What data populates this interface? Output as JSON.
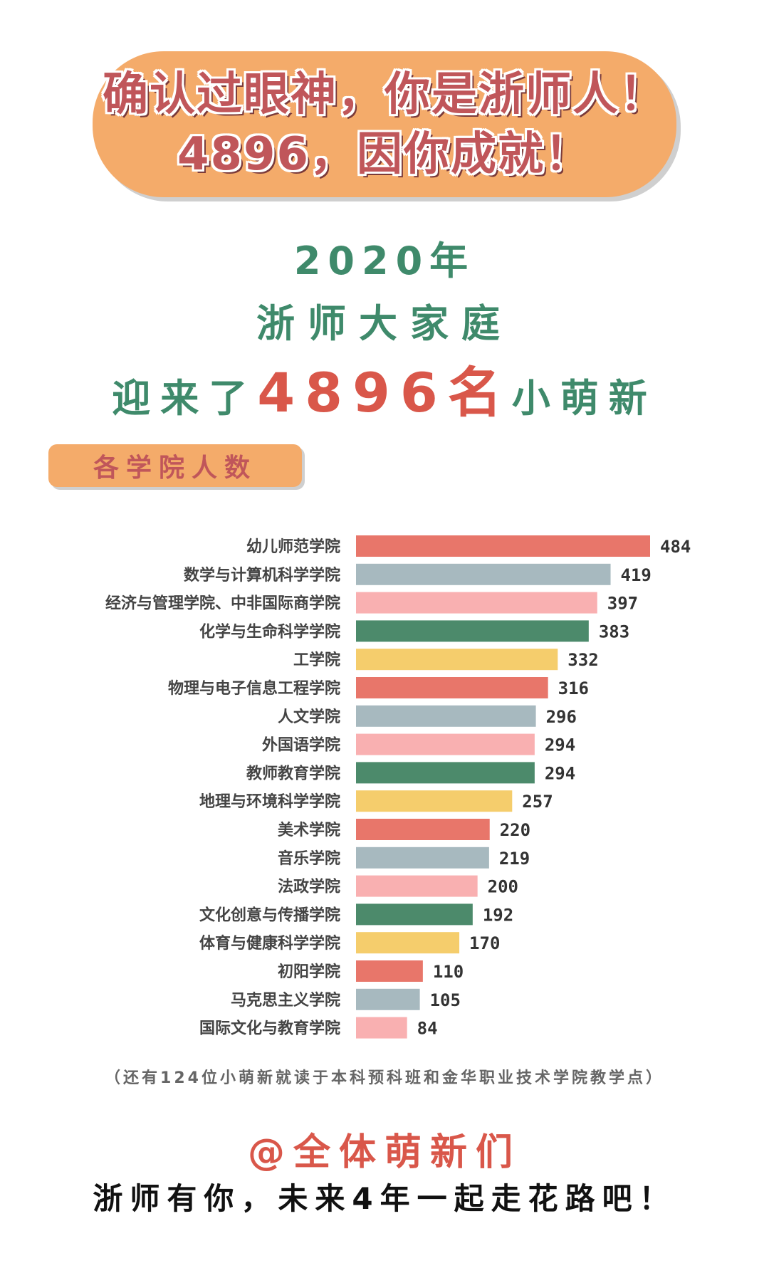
{
  "banner": {
    "line1": "确认过眼神，你是浙师人！",
    "line2": "4896，因你成就！"
  },
  "headline": {
    "year": "2020年",
    "family": "浙师大家庭",
    "welcome_prefix": "迎来了",
    "count": "4896",
    "count_unit": "名",
    "welcome_suffix": "小萌新"
  },
  "section_tag": "各学院人数",
  "colors": {
    "coral": "#e8766a",
    "gray": "#a7b9bf",
    "pink": "#f9b0b1",
    "green": "#4c8a6b",
    "yellow": "#f5cd6c",
    "orange": "#f4ab6a"
  },
  "chart_data": {
    "type": "bar",
    "orientation": "horizontal",
    "title": "",
    "xlabel": "",
    "ylabel": "",
    "xlim": [
      0,
      484
    ],
    "grid": false,
    "data_labels": true,
    "categories": [
      "幼儿师范学院",
      "数学与计算机科学学院",
      "经济与管理学院、中非国际商学院",
      "化学与生命科学学院",
      "工学院",
      "物理与电子信息工程学院",
      "人文学院",
      "外国语学院",
      "教师教育学院",
      "地理与环境科学学院",
      "美术学院",
      "音乐学院",
      "法政学院",
      "文化创意与传播学院",
      "体育与健康科学学院",
      "初阳学院",
      "马克思主义学院",
      "国际文化与教育学院"
    ],
    "values": [
      484,
      419,
      397,
      383,
      332,
      316,
      296,
      294,
      294,
      257,
      220,
      219,
      200,
      192,
      170,
      110,
      105,
      84
    ],
    "bar_colors": [
      "#e8766a",
      "#a7b9bf",
      "#f9b0b1",
      "#4c8a6b",
      "#f5cd6c",
      "#e8766a",
      "#a7b9bf",
      "#f9b0b1",
      "#4c8a6b",
      "#f5cd6c",
      "#e8766a",
      "#a7b9bf",
      "#f9b0b1",
      "#4c8a6b",
      "#f5cd6c",
      "#e8766a",
      "#a7b9bf",
      "#f9b0b1"
    ]
  },
  "footnote": "（还有124位小萌新就读于本科预科班和金华职业技术学院教学点）",
  "sign": "@全体萌新们",
  "closing": "浙师有你，未来4年一起走花路吧！"
}
